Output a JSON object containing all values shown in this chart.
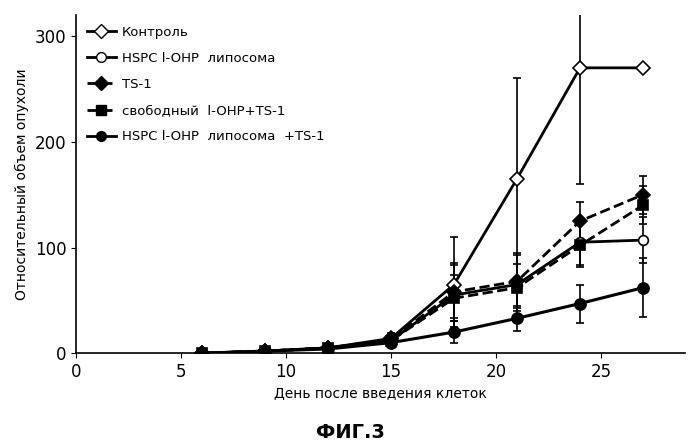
{
  "title": "ФИГ.3",
  "xlabel": "День после введения клеток",
  "ylabel": "Относительный объем опухоли",
  "xlim": [
    0,
    29
  ],
  "ylim": [
    0,
    320
  ],
  "xticks": [
    0,
    5,
    10,
    15,
    20,
    25
  ],
  "yticks": [
    0,
    100,
    200,
    300
  ],
  "series": [
    {
      "label": "Контроль",
      "x": [
        6,
        9,
        12,
        15,
        18,
        21,
        24,
        27
      ],
      "y": [
        0,
        2,
        5,
        14,
        65,
        165,
        270,
        270
      ],
      "yerr": [
        0,
        1,
        2,
        5,
        45,
        95,
        110,
        0
      ],
      "color": "black",
      "linestyle": "-",
      "marker": "D",
      "markersize": 7,
      "markerfacecolor": "white",
      "linewidth": 2.0,
      "zorder": 3
    },
    {
      "label": "HSPC l-OHP  липосома",
      "x": [
        6,
        9,
        12,
        15,
        18,
        21,
        24,
        27
      ],
      "y": [
        0,
        2,
        5,
        12,
        55,
        65,
        105,
        107
      ],
      "yerr": [
        0,
        1,
        2,
        5,
        30,
        30,
        22,
        22
      ],
      "color": "black",
      "linestyle": "-",
      "marker": "o",
      "markersize": 7,
      "markerfacecolor": "white",
      "linewidth": 2.0,
      "zorder": 3
    },
    {
      "label": "TS-1",
      "x": [
        6,
        9,
        12,
        15,
        18,
        21,
        24,
        27
      ],
      "y": [
        0,
        2,
        5,
        13,
        58,
        68,
        125,
        150
      ],
      "yerr": [
        0,
        1,
        2,
        4,
        25,
        25,
        18,
        18
      ],
      "color": "black",
      "linestyle": "--",
      "marker": "D",
      "markersize": 7,
      "markerfacecolor": "black",
      "linewidth": 2.0,
      "zorder": 3
    },
    {
      "label": "свободный  l-OHP+TS-1",
      "x": [
        6,
        9,
        12,
        15,
        18,
        21,
        24,
        27
      ],
      "y": [
        0,
        2,
        5,
        12,
        52,
        62,
        102,
        140
      ],
      "yerr": [
        0,
        1,
        2,
        4,
        22,
        22,
        20,
        18
      ],
      "color": "black",
      "linestyle": "--",
      "marker": "s",
      "markersize": 7,
      "markerfacecolor": "black",
      "linewidth": 2.0,
      "zorder": 3
    },
    {
      "label": "HSPC l-OHP  липосома  +TS-1",
      "x": [
        6,
        9,
        12,
        15,
        18,
        21,
        24,
        27
      ],
      "y": [
        0,
        2,
        4,
        10,
        20,
        33,
        47,
        62
      ],
      "yerr": [
        0,
        1,
        1,
        3,
        10,
        12,
        18,
        28
      ],
      "color": "black",
      "linestyle": "-",
      "marker": "o",
      "markersize": 8,
      "markerfacecolor": "black",
      "linewidth": 2.2,
      "zorder": 4
    }
  ],
  "legend_entries": [
    {
      "label": "Контроль",
      "linestyle": "-",
      "marker": "D",
      "markerfacecolor": "white"
    },
    {
      "label": "HSPC l-OHP  липосома",
      "linestyle": "-",
      "marker": "o",
      "markerfacecolor": "white"
    },
    {
      "label": "TS-1",
      "linestyle": "--",
      "marker": "D",
      "markerfacecolor": "black"
    },
    {
      "label": "свободный  l-OHP+TS-1",
      "linestyle": "--",
      "marker": "s",
      "markerfacecolor": "black"
    },
    {
      "label": "HSPC l-OHP  липосома  +TS-1",
      "linestyle": "-",
      "marker": "o",
      "markerfacecolor": "black"
    }
  ],
  "legend_fontsize": 9.5,
  "axis_fontsize": 10,
  "tick_fontsize": 12,
  "title_fontsize": 14,
  "background_color": "white"
}
